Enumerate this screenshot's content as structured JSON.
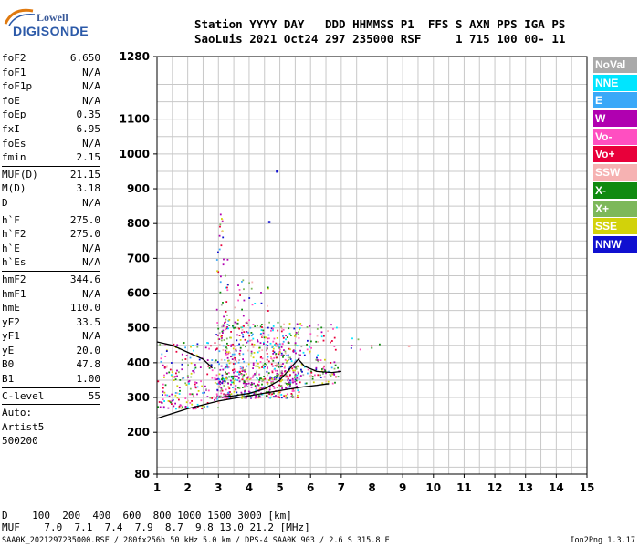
{
  "logo": {
    "line1": "Lowell",
    "line2": "DIGISONDE"
  },
  "header": {
    "line1": "Station YYYY DAY   DDD HHMMSS P1  FFS S AXN PPS IGA PS",
    "line2": "SaoLuis 2021 Oct24 297 235000 RSF     1 715 100 00- 11"
  },
  "params": [
    {
      "k": "foF2",
      "v": "6.650"
    },
    {
      "k": "foF1",
      "v": "N/A"
    },
    {
      "k": "foF1p",
      "v": "N/A"
    },
    {
      "k": "foE",
      "v": "N/A"
    },
    {
      "k": "foEp",
      "v": "0.35"
    },
    {
      "k": "fxI",
      "v": "6.95"
    },
    {
      "k": "foEs",
      "v": "N/A"
    },
    {
      "k": "fmin",
      "v": "2.15"
    },
    {
      "sep": true
    },
    {
      "k": "MUF(D)",
      "v": "21.15"
    },
    {
      "k": "M(D)",
      "v": "3.18"
    },
    {
      "k": "D",
      "v": "N/A"
    },
    {
      "sep": true
    },
    {
      "k": "h`F",
      "v": "275.0"
    },
    {
      "k": "h`F2",
      "v": "275.0"
    },
    {
      "k": "h`E",
      "v": "N/A"
    },
    {
      "k": "h`Es",
      "v": "N/A"
    },
    {
      "sep": true
    },
    {
      "k": "hmF2",
      "v": "344.6"
    },
    {
      "k": "hmF1",
      "v": "N/A"
    },
    {
      "k": "hmE",
      "v": "110.0"
    },
    {
      "k": "yF2",
      "v": "33.5"
    },
    {
      "k": "yF1",
      "v": "N/A"
    },
    {
      "k": "yE",
      "v": "20.0"
    },
    {
      "k": "B0",
      "v": "47.8"
    },
    {
      "k": "B1",
      "v": "1.00"
    },
    {
      "sep": true
    },
    {
      "k": "C-level",
      "v": "55"
    },
    {
      "sep": true
    },
    {
      "text": "Auto:"
    },
    {
      "text": "Artist5"
    },
    {
      "text": "500200"
    }
  ],
  "legend": [
    {
      "label": "NoVal",
      "color": "#a9a9a9"
    },
    {
      "label": "NNE",
      "color": "#00e5ff"
    },
    {
      "label": "E",
      "color": "#3aa8f8"
    },
    {
      "label": "W",
      "color": "#b000b0"
    },
    {
      "label": "Vo-",
      "color": "#ff4fc1"
    },
    {
      "label": "Vo+",
      "color": "#e8003a"
    },
    {
      "label": "SSW",
      "color": "#f6b2b2"
    },
    {
      "label": "X-",
      "color": "#108a10"
    },
    {
      "label": "X+",
      "color": "#7db85a"
    },
    {
      "label": "SSE",
      "color": "#d2d20a"
    },
    {
      "label": "NNW",
      "color": "#1010d0"
    }
  ],
  "chart_data": {
    "type": "scatter",
    "xlim": [
      1,
      15
    ],
    "ylim": [
      80,
      1280
    ],
    "xticks": [
      1,
      2,
      3,
      4,
      5,
      6,
      7,
      8,
      9,
      10,
      11,
      12,
      13,
      14,
      15
    ],
    "yticks": [
      80,
      200,
      300,
      400,
      500,
      600,
      700,
      800,
      900,
      1000,
      1100,
      1280
    ],
    "grid": true,
    "clusters": [
      {
        "x": [
          1.0,
          3.0
        ],
        "y": [
          270,
          460
        ],
        "density": 1.0
      },
      {
        "x": [
          2.9,
          5.6
        ],
        "y": [
          300,
          520
        ],
        "density": 2.0
      },
      {
        "x": [
          2.9,
          3.3
        ],
        "y": [
          500,
          830
        ],
        "density": 0.6
      },
      {
        "x": [
          3.3,
          4.6
        ],
        "y": [
          500,
          640
        ],
        "density": 0.4
      },
      {
        "x": [
          5.4,
          6.9
        ],
        "y": [
          360,
          520
        ],
        "density": 0.7
      },
      {
        "x": [
          7.0,
          8.4
        ],
        "y": [
          440,
          480
        ],
        "density": 0.25
      },
      {
        "x": [
          3.0,
          6.8
        ],
        "y": [
          340,
          390
        ],
        "density": 1.2
      }
    ],
    "outliers": [
      {
        "x": 4.9,
        "y": 950,
        "color": "#1010d0"
      },
      {
        "x": 4.65,
        "y": 805,
        "color": "#1010d0"
      },
      {
        "x": 9.2,
        "y": 448,
        "color": "#f6b2b2"
      }
    ],
    "traces": [
      {
        "name": "",
        "x": [
          1.0,
          2.0,
          3.0,
          4.0,
          5.0,
          5.7,
          6.2,
          6.6
        ],
        "y": [
          240,
          268,
          290,
          305,
          320,
          330,
          335,
          340
        ]
      },
      {
        "name": "",
        "x": [
          3.0,
          3.5,
          4.0,
          4.5,
          5.0,
          5.3,
          5.6,
          5.8,
          6.2,
          6.7,
          7.0
        ],
        "y": [
          300,
          305,
          312,
          325,
          350,
          380,
          410,
          390,
          375,
          372,
          375
        ]
      },
      {
        "name": "",
        "x": [
          1.0,
          1.5,
          2.0,
          2.5,
          2.8
        ],
        "y": [
          460,
          450,
          430,
          410,
          385
        ]
      }
    ]
  },
  "distance_table": {
    "label_d": "D",
    "d_values": "100  200  400  600  800 1000 1500 3000 [km]",
    "label_muf": "MUF",
    "muf_values": "7.0  7.1  7.4  7.9  8.7  9.8 13.0 21.2 [MHz]"
  },
  "footer": {
    "file": "SAA0K_2021297235000.RSF / 280fx256h 50 kHz 5.0 km / DPS-4 SAA0K 903 / 2.6 S 315.8 E",
    "version": "Ion2Png 1.3.17"
  }
}
